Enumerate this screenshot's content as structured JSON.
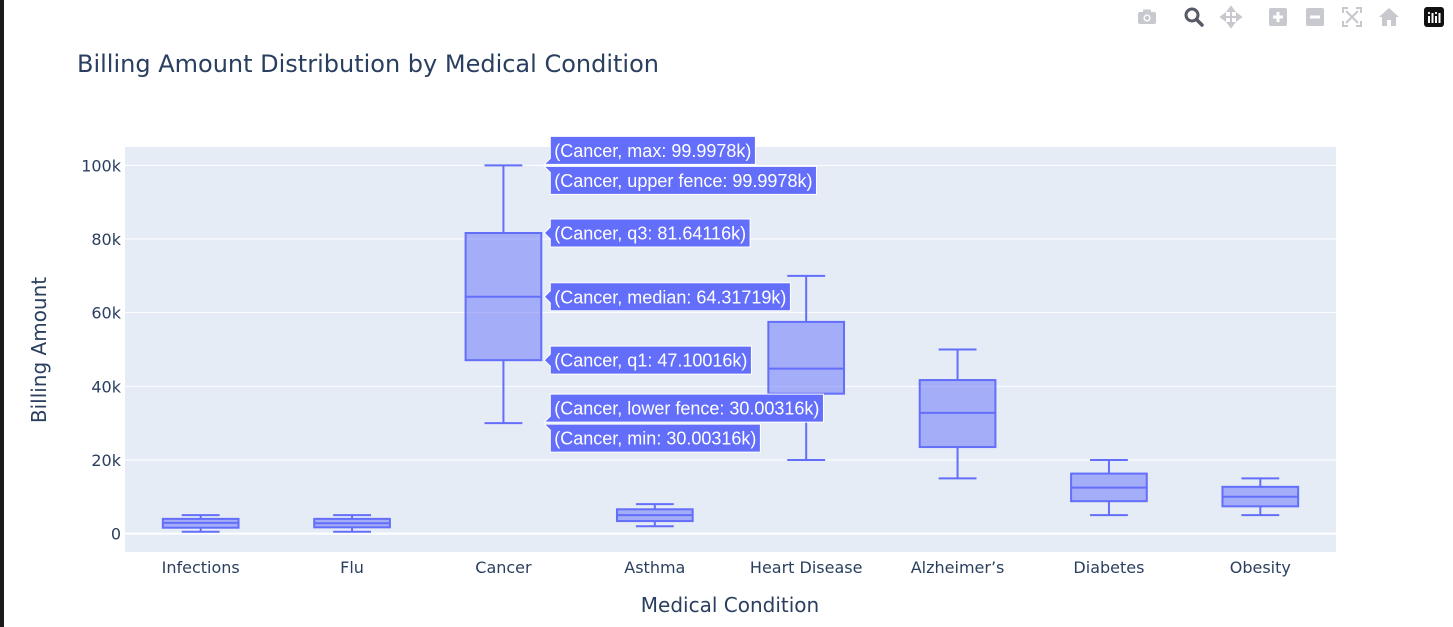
{
  "modebar": {
    "buttons": [
      {
        "name": "camera-icon",
        "title": "Download plot as a png"
      },
      {
        "name": "zoom-icon",
        "title": "Zoom"
      },
      {
        "name": "pan-icon",
        "title": "Pan"
      },
      {
        "name": "zoom-in-icon",
        "title": "Zoom in"
      },
      {
        "name": "zoom-out-icon",
        "title": "Zoom out"
      },
      {
        "name": "autoscale-icon",
        "title": "Autoscale"
      },
      {
        "name": "reset-axes-icon",
        "title": "Reset axes"
      },
      {
        "name": "plotly-logo-icon",
        "title": "Produced with Plotly"
      }
    ]
  },
  "colors": {
    "plot_bg": "#e5ecf6",
    "box_line": "#636efa",
    "box_fill": "rgba(99,110,250,0.5)",
    "grid": "#ffffff",
    "text": "#2a3f5f",
    "hover_bg": "#636efa"
  },
  "chart_data": {
    "type": "box",
    "title": "Billing Amount Distribution by Medical Condition",
    "xlabel": "Medical Condition",
    "ylabel": "Billing Amount",
    "ylim": [
      -5000,
      105000
    ],
    "yticks": [
      0,
      20000,
      40000,
      60000,
      80000,
      100000
    ],
    "ytick_labels": [
      "0",
      "20k",
      "40k",
      "60k",
      "80k",
      "100k"
    ],
    "categories": [
      "Infections",
      "Flu",
      "Cancer",
      "Asthma",
      "Heart Disease",
      "Alzheimer’s",
      "Diabetes",
      "Obesity"
    ],
    "boxes": [
      {
        "category": "Infections",
        "min": 500,
        "q1": 1600,
        "median": 2900,
        "q3": 4000,
        "max": 5000
      },
      {
        "category": "Flu",
        "min": 500,
        "q1": 1700,
        "median": 2800,
        "q3": 4000,
        "max": 5000
      },
      {
        "category": "Cancer",
        "min": 30003.16,
        "q1": 47100.16,
        "median": 64317.19,
        "q3": 81641.16,
        "max": 99997.8
      },
      {
        "category": "Asthma",
        "min": 2000,
        "q1": 3400,
        "median": 5000,
        "q3": 6600,
        "max": 8000
      },
      {
        "category": "Heart Disease",
        "min": 20000,
        "q1": 38000,
        "median": 44800,
        "q3": 57500,
        "max": 70000
      },
      {
        "category": "Alzheimer’s",
        "min": 15000,
        "q1": 23500,
        "median": 32800,
        "q3": 41700,
        "max": 50000
      },
      {
        "category": "Diabetes",
        "min": 5000,
        "q1": 8800,
        "median": 12500,
        "q3": 16300,
        "max": 20000
      },
      {
        "category": "Obesity",
        "min": 5000,
        "q1": 7400,
        "median": 10000,
        "q3": 12700,
        "max": 15000
      }
    ],
    "hover": {
      "category": "Cancer",
      "labels": [
        {
          "text": "(Cancer, max: 99.9978k)",
          "value": 99997.8
        },
        {
          "text": "(Cancer, upper fence: 99.9978k)",
          "value": 99997.8
        },
        {
          "text": "(Cancer, q3: 81.64116k)",
          "value": 81641.16
        },
        {
          "text": "(Cancer, median: 64.31719k)",
          "value": 64317.19
        },
        {
          "text": "(Cancer, q1: 47.10016k)",
          "value": 47100.16
        },
        {
          "text": "(Cancer, lower fence: 30.00316k)",
          "value": 30003.16
        },
        {
          "text": "(Cancer, min: 30.00316k)",
          "value": 30003.16
        }
      ]
    }
  }
}
